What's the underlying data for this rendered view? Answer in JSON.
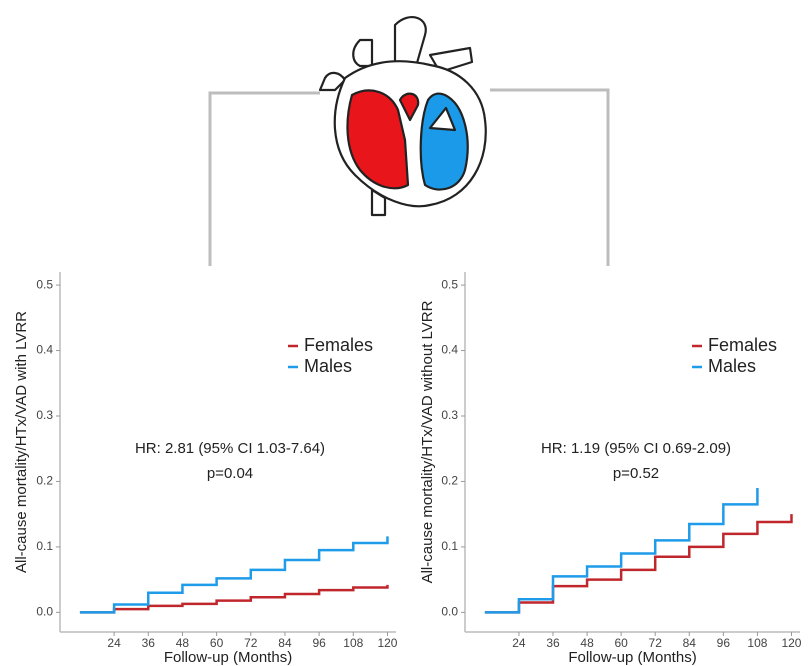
{
  "chart_data": [
    {
      "type": "line",
      "step": true,
      "x_label": "Follow-up (Months)",
      "y_label": "All-cause mortality/HTx/VAD with LVRR",
      "x": [
        12,
        24,
        36,
        48,
        60,
        72,
        84,
        96,
        108,
        120
      ],
      "series": [
        {
          "name": "Females",
          "color": "#c0272d",
          "values": [
            0,
            0.005,
            0.01,
            0.013,
            0.018,
            0.023,
            0.028,
            0.034,
            0.038,
            0.042
          ]
        },
        {
          "name": "Males",
          "color": "#1e9be9",
          "values": [
            0,
            0.012,
            0.03,
            0.042,
            0.052,
            0.065,
            0.08,
            0.095,
            0.106,
            0.116
          ]
        }
      ],
      "xlim": [
        5,
        123
      ],
      "ylim": [
        -0.03,
        0.52
      ],
      "xticks": [
        24,
        36,
        48,
        60,
        72,
        84,
        96,
        108,
        120
      ],
      "yticks": [
        {
          "value": 0,
          "label": "0.0"
        },
        0.1,
        0.2,
        0.3,
        0.4,
        0.5
      ],
      "annotations": [
        "HR: 2.81 (95% CI 1.03-7.64)",
        "p=0.04"
      ]
    },
    {
      "type": "line",
      "step": true,
      "x_label": "Follow-up (Months)",
      "y_label": "All-cause mortality/HTx/VAD without LVRR",
      "x": [
        12,
        24,
        36,
        48,
        60,
        72,
        84,
        96,
        108,
        120
      ],
      "series": [
        {
          "name": "Females",
          "color": "#c0272d",
          "values": [
            0,
            0.015,
            0.04,
            0.05,
            0.065,
            0.085,
            0.1,
            0.12,
            0.138,
            0.15
          ]
        },
        {
          "name": "Males",
          "color": "#1e9be9",
          "values": [
            0,
            0.02,
            0.055,
            0.07,
            0.09,
            0.11,
            0.135,
            0.165,
            0.19,
            null
          ]
        }
      ],
      "xlim": [
        5,
        123
      ],
      "ylim": [
        -0.03,
        0.52
      ],
      "xticks": [
        24,
        36,
        48,
        60,
        72,
        84,
        96,
        108,
        120
      ],
      "yticks": [
        {
          "value": 0,
          "label": "0.0"
        },
        0.1,
        0.2,
        0.3,
        0.4,
        0.5
      ],
      "annotations": [
        "HR: 1.19 (95% CI 0.69-2.09)",
        "p=0.52"
      ]
    }
  ]
}
